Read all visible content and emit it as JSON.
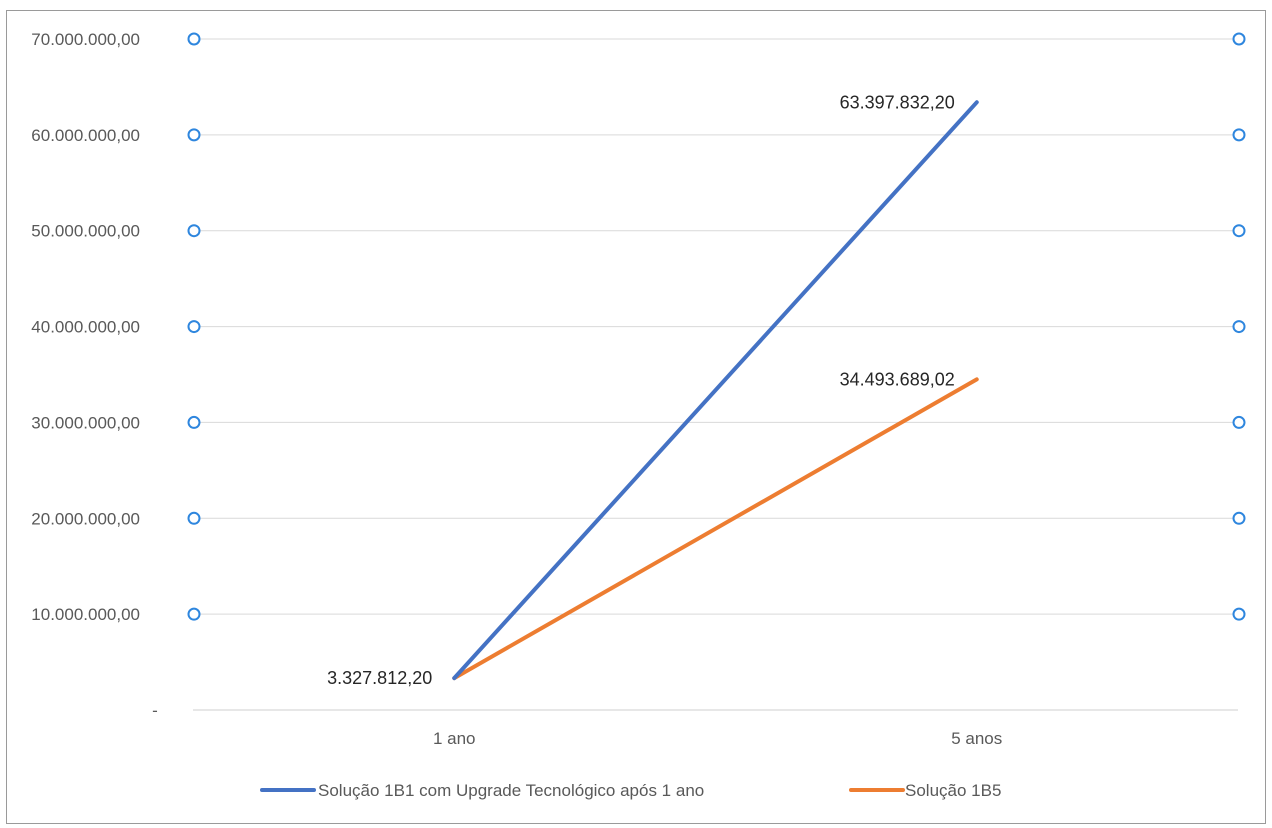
{
  "chart_data": {
    "type": "line",
    "categories": [
      "1 ano",
      "5 anos"
    ],
    "series": [
      {
        "name": "Solução 1B1 com Upgrade Tecnológico após 1 ano",
        "values": [
          3327812.2,
          63397832.2
        ],
        "labels": [
          "3.327.812,20",
          "63.397.832,20"
        ],
        "color": "#4472C4"
      },
      {
        "name": "Solução 1B5",
        "values": [
          3327812.2,
          34493689.02
        ],
        "labels": [
          "",
          "34.493.689,02"
        ],
        "color": "#ED7D31"
      }
    ],
    "ylim": [
      0,
      70000000
    ],
    "yticks": [
      0,
      10000000,
      20000000,
      30000000,
      40000000,
      50000000,
      60000000,
      70000000
    ],
    "ytick_labels": [
      "-",
      "10.000.000,00",
      "20.000.000,00",
      "30.000.000,00",
      "40.000.000,00",
      "50.000.000,00",
      "60.000.000,00",
      "70.000.000,00"
    ],
    "grid": true,
    "legend": "bottom",
    "gridline_color": "#d9d9d9",
    "selection_handle_color": "#2e86de"
  }
}
